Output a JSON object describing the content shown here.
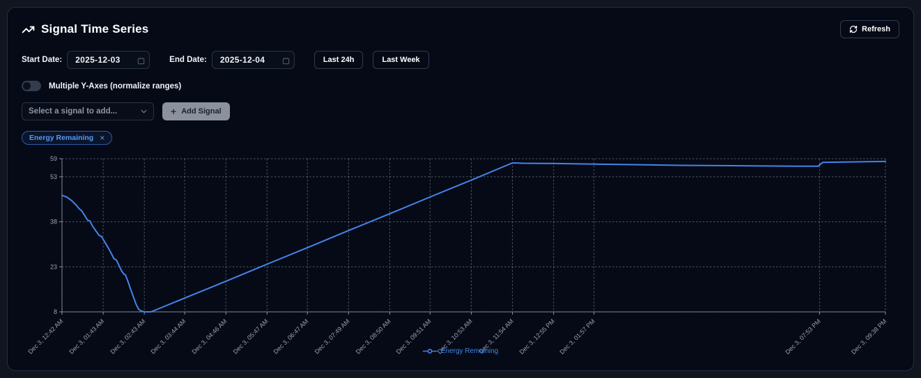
{
  "header": {
    "title": "Signal Time Series",
    "refresh_label": "Refresh"
  },
  "controls": {
    "start_date_label": "Start Date:",
    "start_date_value": "2025-12-03",
    "end_date_label": "End Date:",
    "end_date_value": "2025-12-04",
    "last24h_label": "Last 24h",
    "lastweek_label": "Last Week",
    "multi_axes_label": "Multiple Y-Axes (normalize ranges)",
    "multi_axes_state": "off",
    "signal_select_placeholder": "Select a signal to add...",
    "add_signal_label": "Add Signal",
    "icons": {
      "plus": "+",
      "close": "×"
    }
  },
  "chips": [
    {
      "label": "Energy Remaining"
    }
  ],
  "colors": {
    "accent_blue": "#4584ec",
    "legend_text": "#4285e8",
    "grid": "#aab2c0",
    "axis": "#8b93a2",
    "tick_text": "#9aa2b1",
    "card_bg": "#050a16",
    "page_bg": "#10151f"
  },
  "chart_data": {
    "type": "line",
    "title": "",
    "xlabel": "",
    "ylabel": "",
    "y_range": [
      8,
      59
    ],
    "y_ticks": [
      8,
      23,
      38,
      53,
      59
    ],
    "grid": "dashed",
    "legend_position": "bottom",
    "x_ticks": [
      {
        "label": "Dec 3, 12:42 AM",
        "pos": 0.0
      },
      {
        "label": "Dec 3, 01:43 AM",
        "pos": 0.05
      },
      {
        "label": "Dec 3, 02:43 AM",
        "pos": 0.1
      },
      {
        "label": "Dec 3, 03:44 AM",
        "pos": 0.149
      },
      {
        "label": "Dec 3, 04:46 AM",
        "pos": 0.199
      },
      {
        "label": "Dec 3, 05:47 AM",
        "pos": 0.249
      },
      {
        "label": "Dec 3, 06:47 AM",
        "pos": 0.298
      },
      {
        "label": "Dec 3, 07:49 AM",
        "pos": 0.348
      },
      {
        "label": "Dec 3, 08:50 AM",
        "pos": 0.398
      },
      {
        "label": "Dec 3, 09:51 AM",
        "pos": 0.447
      },
      {
        "label": "Dec 3, 10:53 AM",
        "pos": 0.497
      },
      {
        "label": "Dec 3, 11:54 AM",
        "pos": 0.547
      },
      {
        "label": "Dec 3, 12:55 PM",
        "pos": 0.597
      },
      {
        "label": "Dec 3, 01:57 PM",
        "pos": 0.646
      },
      {
        "label": "Dec 3, 07:53 PM",
        "pos": 0.92
      },
      {
        "label": "Dec 3, 09:38 PM",
        "pos": 1.0
      }
    ],
    "series": [
      {
        "name": "Energy Remaining",
        "color": "#4584ec",
        "points": [
          [
            0.0,
            46.8
          ],
          [
            0.006,
            46.2
          ],
          [
            0.012,
            45.0
          ],
          [
            0.017,
            43.6
          ],
          [
            0.021,
            42.3
          ],
          [
            0.024,
            41.6
          ],
          [
            0.028,
            39.9
          ],
          [
            0.031,
            38.6
          ],
          [
            0.034,
            38.2
          ],
          [
            0.037,
            36.6
          ],
          [
            0.041,
            35.0
          ],
          [
            0.045,
            33.5
          ],
          [
            0.048,
            33.1
          ],
          [
            0.052,
            31.2
          ],
          [
            0.056,
            29.4
          ],
          [
            0.06,
            27.4
          ],
          [
            0.063,
            25.7
          ],
          [
            0.066,
            25.3
          ],
          [
            0.069,
            23.6
          ],
          [
            0.072,
            21.8
          ],
          [
            0.075,
            20.6
          ],
          [
            0.077,
            20.3
          ],
          [
            0.08,
            18.2
          ],
          [
            0.083,
            15.8
          ],
          [
            0.087,
            12.8
          ],
          [
            0.09,
            10.5
          ],
          [
            0.093,
            8.9
          ],
          [
            0.096,
            8.3
          ],
          [
            0.1,
            8.0
          ],
          [
            0.108,
            8.0
          ],
          [
            0.15,
            12.7
          ],
          [
            0.2,
            18.3
          ],
          [
            0.25,
            24.0
          ],
          [
            0.3,
            29.6
          ],
          [
            0.35,
            35.3
          ],
          [
            0.4,
            40.9
          ],
          [
            0.45,
            46.6
          ],
          [
            0.5,
            52.2
          ],
          [
            0.547,
            57.6
          ],
          [
            0.56,
            57.5
          ],
          [
            0.6,
            57.4
          ],
          [
            0.646,
            57.2
          ],
          [
            0.7,
            57.0
          ],
          [
            0.75,
            56.8
          ],
          [
            0.8,
            56.7
          ],
          [
            0.85,
            56.6
          ],
          [
            0.905,
            56.5
          ],
          [
            0.918,
            56.5
          ],
          [
            0.924,
            57.8
          ],
          [
            0.95,
            57.9
          ],
          [
            1.0,
            58.1
          ]
        ]
      }
    ]
  }
}
